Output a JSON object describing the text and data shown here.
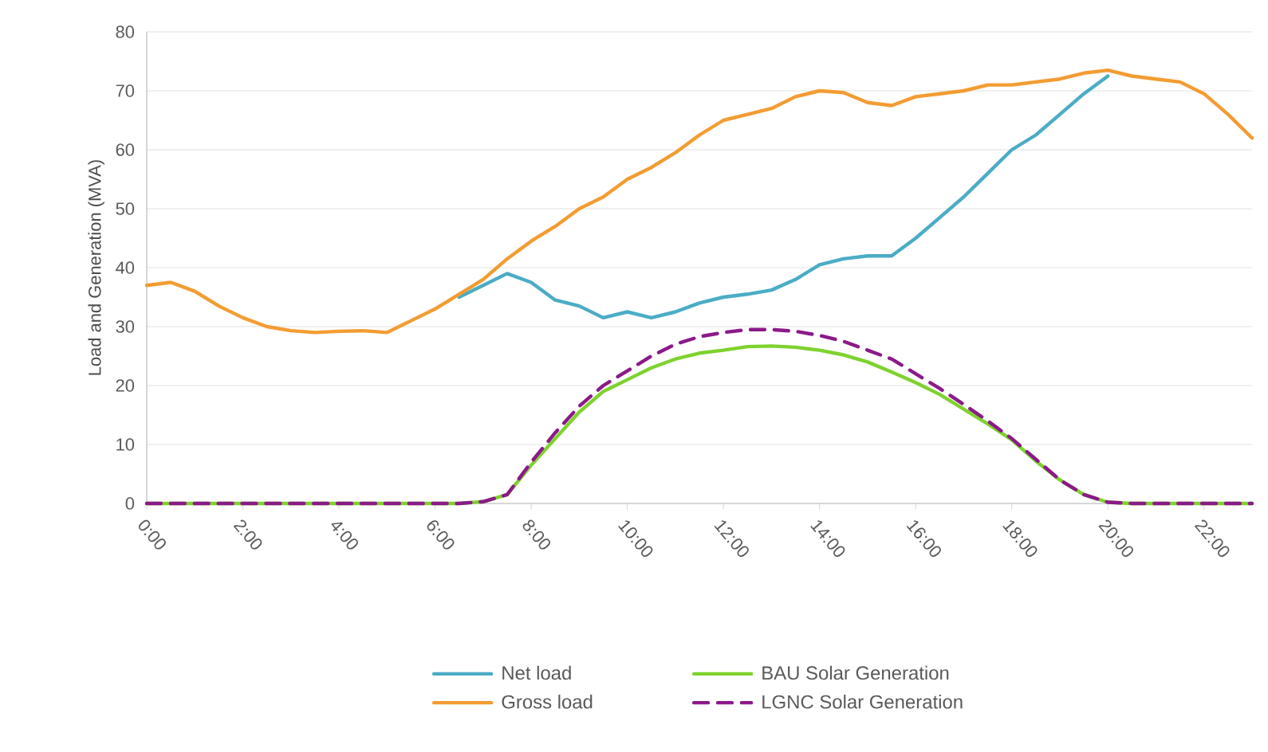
{
  "chart_data": {
    "type": "line",
    "ylabel": "Load and Generation (MVA)",
    "x": [
      0,
      0.5,
      1,
      1.5,
      2,
      2.5,
      3,
      3.5,
      4,
      4.5,
      5,
      5.5,
      6,
      6.5,
      7,
      7.5,
      8,
      8.5,
      9,
      9.5,
      10,
      10.5,
      11,
      11.5,
      12,
      12.5,
      13,
      13.5,
      14,
      14.5,
      15,
      15.5,
      16,
      16.5,
      17,
      17.5,
      18,
      18.5,
      19,
      19.5,
      20,
      20.5,
      21,
      21.5,
      22,
      22.5,
      23
    ],
    "series": [
      {
        "name": "Net load",
        "color": "#4bacc6",
        "values": [
          null,
          null,
          null,
          null,
          null,
          null,
          null,
          null,
          null,
          null,
          null,
          null,
          null,
          35,
          37,
          39,
          37.5,
          34.5,
          33.5,
          31.5,
          32.5,
          31.5,
          32.5,
          34,
          35,
          35.5,
          36.2,
          38,
          40.5,
          41.5,
          42,
          42,
          45,
          48.5,
          52,
          56,
          60,
          62.5,
          66,
          69.5,
          72.5,
          null,
          null,
          null,
          null,
          null,
          null
        ]
      },
      {
        "name": "Gross load",
        "color": "#f39c32",
        "values": [
          37,
          37.5,
          36,
          33.5,
          31.5,
          30,
          29.3,
          29,
          29.2,
          29.3,
          29,
          31,
          33,
          35.5,
          38,
          41.5,
          44.5,
          47,
          50,
          52,
          55,
          57,
          59.5,
          62.5,
          65,
          66,
          67,
          69,
          70,
          69.7,
          68,
          67.5,
          69,
          69.5,
          70,
          71,
          71,
          71.5,
          72,
          73,
          73.5,
          72.5,
          72,
          71.5,
          69.5,
          66,
          62
        ]
      },
      {
        "name": "BAU Solar Generation",
        "color": "#7ed22e",
        "values": [
          0,
          0,
          0,
          0,
          0,
          0,
          0,
          0,
          0,
          0,
          0,
          0,
          0,
          0,
          0.3,
          1.5,
          6.5,
          11,
          15.5,
          19,
          21,
          23,
          24.5,
          25.5,
          26,
          26.6,
          26.7,
          26.5,
          26,
          25.2,
          24,
          22.3,
          20.5,
          18.5,
          16,
          13.5,
          10.8,
          7.2,
          4,
          1.5,
          0.2,
          0,
          0,
          0,
          0,
          0,
          0
        ]
      },
      {
        "name": "LGNC Solar Generation",
        "color": "#8b1a89",
        "line_style": "dashed",
        "values": [
          0,
          0,
          0,
          0,
          0,
          0,
          0,
          0,
          0,
          0,
          0,
          0,
          0,
          0,
          0.3,
          1.5,
          7,
          12,
          16.5,
          20,
          22.5,
          25,
          27,
          28.3,
          29,
          29.5,
          29.5,
          29.2,
          28.5,
          27.5,
          26,
          24.5,
          22,
          19.5,
          16.8,
          14,
          11,
          7.5,
          4,
          1.5,
          0.2,
          0,
          0,
          0,
          0,
          0,
          0
        ]
      }
    ],
    "xlim": [
      0,
      23
    ],
    "xticks": [
      {
        "value": 0,
        "label": "0:00"
      },
      {
        "value": 2,
        "label": "2:00"
      },
      {
        "value": 4,
        "label": "4:00"
      },
      {
        "value": 6,
        "label": "6:00"
      },
      {
        "value": 8,
        "label": "8:00"
      },
      {
        "value": 10,
        "label": "10:00"
      },
      {
        "value": 12,
        "label": "12:00"
      },
      {
        "value": 14,
        "label": "14:00"
      },
      {
        "value": 16,
        "label": "16:00"
      },
      {
        "value": 18,
        "label": "18:00"
      },
      {
        "value": 20,
        "label": "20:00"
      },
      {
        "value": 22,
        "label": "22:00"
      }
    ],
    "ylim": [
      0,
      80
    ],
    "yticks": [
      0,
      10,
      20,
      30,
      40,
      50,
      60,
      70,
      80
    ],
    "grid": "y",
    "legend": "bottom",
    "marker": "none",
    "line_style": "solid"
  }
}
